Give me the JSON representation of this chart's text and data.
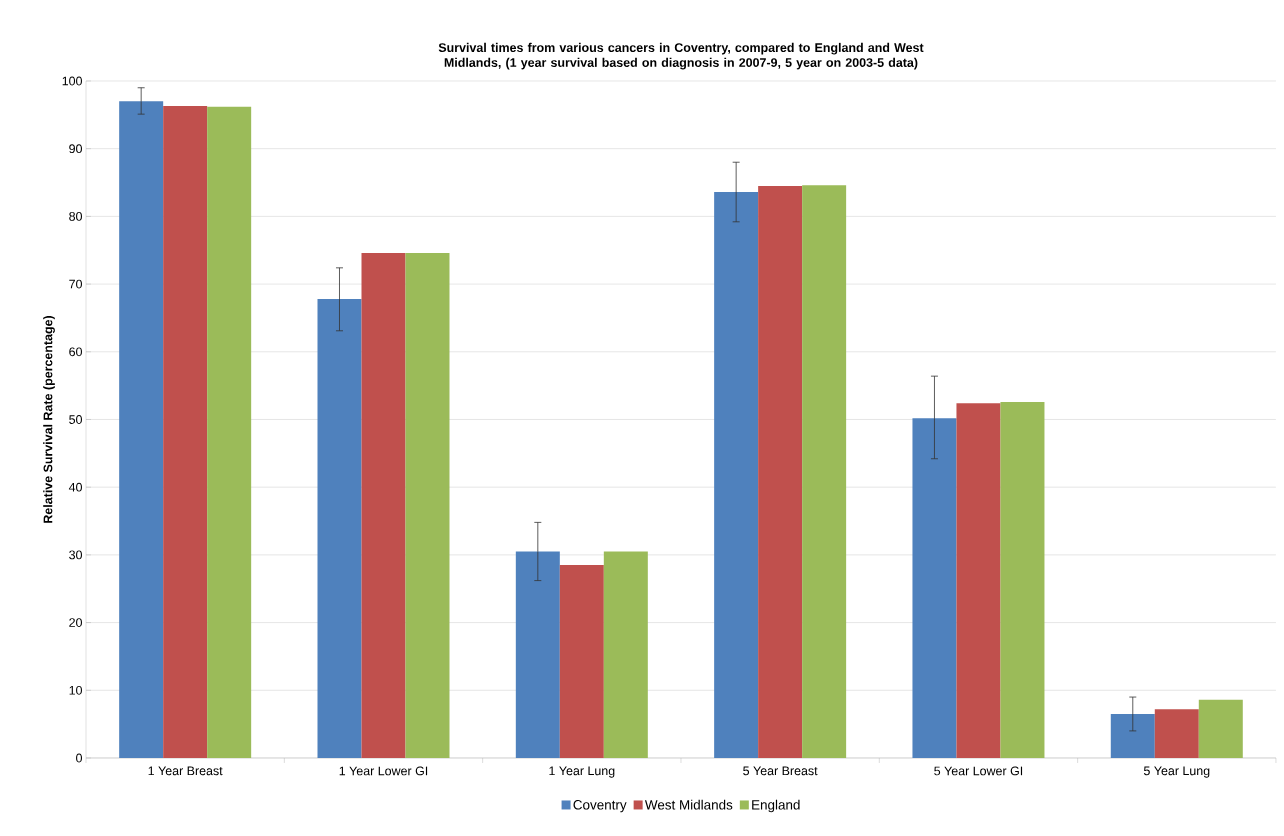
{
  "chart_data": {
    "type": "bar",
    "title": "Survival times from various cancers in Coventry, compared to England and West Midlands, (1 year survival based on diagnosis in 2007-9, 5 year on 2003-5 data)",
    "ylabel": "Relative Survival Rate (percentage)",
    "categories": [
      "1 Year Breast",
      "1 Year Lower GI",
      "1 Year Lung",
      "5 Year Breast",
      "5 Year Lower GI",
      "5 Year Lung"
    ],
    "series": [
      {
        "name": "Coventry",
        "color": "#4f81bd",
        "values": [
          97.0,
          67.8,
          30.5,
          83.6,
          50.2,
          6.5
        ],
        "errors": [
          [
            95.1,
            99.0
          ],
          [
            63.1,
            72.4
          ],
          [
            26.2,
            34.8
          ],
          [
            79.2,
            88.0
          ],
          [
            44.2,
            56.4
          ],
          [
            4.0,
            9.0
          ]
        ]
      },
      {
        "name": "West Midlands",
        "color": "#c0504d",
        "values": [
          96.3,
          74.6,
          28.5,
          84.5,
          52.4,
          7.2
        ]
      },
      {
        "name": "England",
        "color": "#9bbb59",
        "values": [
          96.2,
          74.6,
          30.5,
          84.6,
          52.6,
          8.6
        ]
      }
    ],
    "ylim": [
      0,
      100
    ],
    "yticks": [
      0,
      10,
      20,
      30,
      40,
      50,
      60,
      70,
      80,
      90,
      100
    ],
    "grid": "y",
    "legend": "bottom"
  }
}
